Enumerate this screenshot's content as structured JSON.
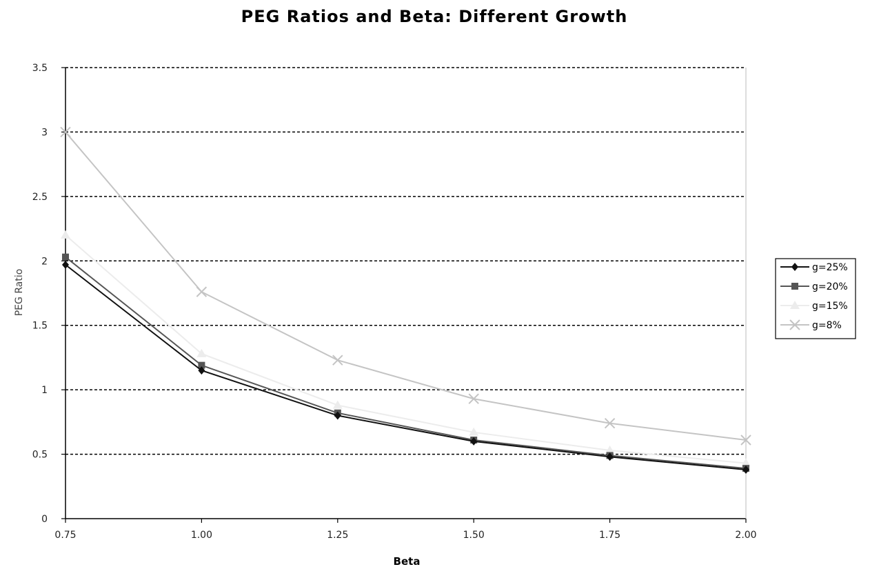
{
  "chart_data": {
    "type": "line",
    "title": "PEG Ratios and Beta: Different Growth",
    "xlabel": "Beta",
    "ylabel": "PEG Ratio",
    "x": [
      0.75,
      1.0,
      1.25,
      1.5,
      1.75,
      2.0
    ],
    "x_tick_labels": [
      "0.75",
      "1.00",
      "1.25",
      "1.50",
      "1.75",
      "2.00"
    ],
    "y_tick_labels": [
      "0",
      "0.5",
      "1",
      "1.5",
      "2",
      "2.5",
      "3",
      "3.5"
    ],
    "xlim": [
      0.75,
      2.0
    ],
    "ylim": [
      0,
      3.5
    ],
    "grid": "horizontal dashed",
    "legend_position": "right",
    "series": [
      {
        "name": "g=25%",
        "values": [
          1.97,
          1.15,
          0.8,
          0.6,
          0.48,
          0.38
        ],
        "color": "#111111",
        "marker": "diamond"
      },
      {
        "name": "g=20%",
        "values": [
          2.03,
          1.19,
          0.82,
          0.61,
          0.49,
          0.39
        ],
        "color": "#555555",
        "marker": "square"
      },
      {
        "name": "g=15%",
        "values": [
          2.2,
          1.28,
          0.88,
          0.67,
          0.53,
          0.43
        ],
        "color": "#ececec",
        "marker": "triangle"
      },
      {
        "name": "g=8%",
        "values": [
          3.0,
          1.76,
          1.23,
          0.93,
          0.74,
          0.61
        ],
        "color": "#c4c4c4",
        "marker": "x"
      }
    ]
  }
}
